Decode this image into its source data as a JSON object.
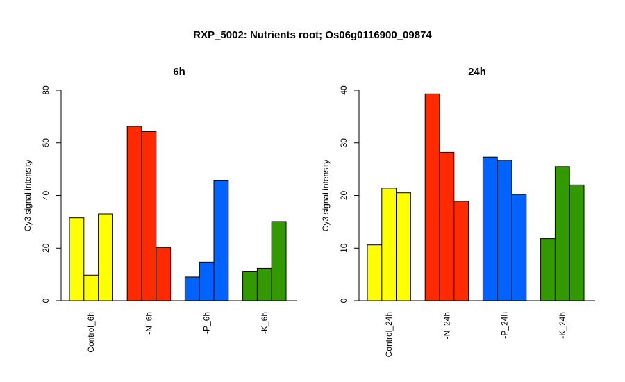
{
  "title": "RXP_5002: Nutrients root; Os06g0116900_09874",
  "colors": {
    "yellow": "#FFFF00",
    "red": "#FF2A00",
    "blue": "#0062FF",
    "green": "#339900"
  },
  "chart_data": [
    {
      "type": "bar",
      "title": "6h",
      "ylabel": "Cy3 signal intensity",
      "xlabel": "",
      "ylim": [
        0,
        80
      ],
      "yticks": [
        0,
        20,
        40,
        60,
        80
      ],
      "grid": false,
      "categories": [
        "Control_6h",
        "-N_6h",
        "-P_6h",
        "-K_6h"
      ],
      "group_colors": [
        "#FFFF00",
        "#FF2A00",
        "#0062FF",
        "#339900"
      ],
      "values": [
        [
          31.5,
          9.7,
          33
        ],
        [
          66.3,
          64.3,
          20.3
        ],
        [
          9,
          14.7,
          45.8
        ],
        [
          11.2,
          12.3,
          30.1
        ]
      ]
    },
    {
      "type": "bar",
      "title": "24h",
      "ylabel": "Cy3 signal intensity",
      "xlabel": "",
      "ylim": [
        0,
        40
      ],
      "yticks": [
        0,
        10,
        20,
        30,
        40
      ],
      "grid": false,
      "categories": [
        "Control_24h",
        "-N_24h",
        "-P_24h",
        "-K_24h"
      ],
      "group_colors": [
        "#FFFF00",
        "#FF2A00",
        "#0062FF",
        "#339900"
      ],
      "values": [
        [
          10.6,
          21.4,
          20.5
        ],
        [
          39.3,
          28.2,
          18.9
        ],
        [
          27.3,
          26.7,
          20.2
        ],
        [
          11.8,
          25.5,
          22
        ]
      ]
    }
  ]
}
